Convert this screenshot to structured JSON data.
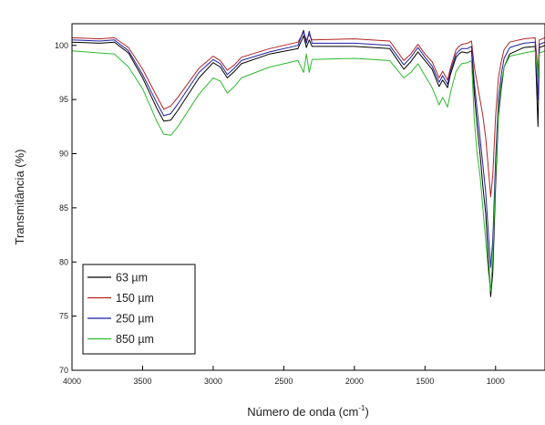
{
  "chart_data": {
    "type": "line",
    "title": "",
    "xlabel": "Número de onda (cm",
    "xlabel_sup": "-1",
    "xlabel_suffix": ")",
    "ylabel": "Transmitância (%)",
    "xlim": [
      4000,
      650
    ],
    "ylim": [
      70,
      102
    ],
    "x_reversed": true,
    "x_ticks": [
      4000,
      3500,
      3000,
      2500,
      2000,
      1500,
      1000
    ],
    "y_ticks": [
      70,
      75,
      80,
      85,
      90,
      95,
      100
    ],
    "grid": false,
    "legend_position": "bottom-left",
    "series": [
      {
        "name": "63 µm",
        "color": "#000000",
        "points": [
          [
            4000,
            100.3
          ],
          [
            3800,
            100.2
          ],
          [
            3700,
            100.3
          ],
          [
            3600,
            99.3
          ],
          [
            3500,
            97.0
          ],
          [
            3400,
            94.2
          ],
          [
            3350,
            93.0
          ],
          [
            3300,
            93.1
          ],
          [
            3250,
            94.0
          ],
          [
            3100,
            97.0
          ],
          [
            3000,
            98.4
          ],
          [
            2950,
            98.0
          ],
          [
            2900,
            97.0
          ],
          [
            2850,
            97.6
          ],
          [
            2800,
            98.3
          ],
          [
            2600,
            99.2
          ],
          [
            2400,
            99.7
          ],
          [
            2360,
            100.9
          ],
          [
            2340,
            99.8
          ],
          [
            2320,
            100.5
          ],
          [
            2300,
            99.9
          ],
          [
            2000,
            99.9
          ],
          [
            1750,
            99.7
          ],
          [
            1650,
            97.8
          ],
          [
            1600,
            98.5
          ],
          [
            1550,
            99.4
          ],
          [
            1500,
            98.6
          ],
          [
            1450,
            97.8
          ],
          [
            1400,
            96.2
          ],
          [
            1375,
            96.8
          ],
          [
            1340,
            96.1
          ],
          [
            1320,
            97.3
          ],
          [
            1280,
            98.9
          ],
          [
            1260,
            99.2
          ],
          [
            1240,
            99.4
          ],
          [
            1200,
            99.3
          ],
          [
            1170,
            99.5
          ],
          [
            1150,
            95.5
          ],
          [
            1130,
            92.5
          ],
          [
            1110,
            90.0
          ],
          [
            1090,
            87.0
          ],
          [
            1070,
            84.5
          ],
          [
            1050,
            80.0
          ],
          [
            1035,
            76.8
          ],
          [
            1020,
            79.0
          ],
          [
            1000,
            87.0
          ],
          [
            980,
            93.5
          ],
          [
            960,
            96.0
          ],
          [
            940,
            98.0
          ],
          [
            900,
            99.2
          ],
          [
            800,
            99.8
          ],
          [
            720,
            99.9
          ],
          [
            700,
            92.5
          ],
          [
            690,
            99.8
          ],
          [
            650,
            100.0
          ]
        ]
      },
      {
        "name": "150 µm",
        "color": "#b22222",
        "points": [
          [
            4000,
            100.7
          ],
          [
            3800,
            100.6
          ],
          [
            3700,
            100.7
          ],
          [
            3600,
            99.8
          ],
          [
            3500,
            97.8
          ],
          [
            3400,
            95.3
          ],
          [
            3350,
            94.1
          ],
          [
            3300,
            94.4
          ],
          [
            3250,
            95.2
          ],
          [
            3100,
            97.9
          ],
          [
            3000,
            99.0
          ],
          [
            2950,
            98.6
          ],
          [
            2900,
            97.7
          ],
          [
            2850,
            98.2
          ],
          [
            2800,
            98.9
          ],
          [
            2600,
            99.7
          ],
          [
            2400,
            100.3
          ],
          [
            2360,
            101.2
          ],
          [
            2340,
            100.5
          ],
          [
            2320,
            101.0
          ],
          [
            2300,
            100.5
          ],
          [
            2000,
            100.6
          ],
          [
            1750,
            100.4
          ],
          [
            1650,
            98.6
          ],
          [
            1600,
            99.2
          ],
          [
            1550,
            100.1
          ],
          [
            1500,
            99.2
          ],
          [
            1450,
            98.5
          ],
          [
            1400,
            97.0
          ],
          [
            1375,
            97.6
          ],
          [
            1340,
            96.8
          ],
          [
            1320,
            97.9
          ],
          [
            1280,
            99.6
          ],
          [
            1260,
            99.9
          ],
          [
            1240,
            100.1
          ],
          [
            1200,
            100.2
          ],
          [
            1170,
            100.4
          ],
          [
            1150,
            98.0
          ],
          [
            1130,
            96.5
          ],
          [
            1110,
            95.0
          ],
          [
            1090,
            93.5
          ],
          [
            1070,
            91.5
          ],
          [
            1050,
            88.5
          ],
          [
            1035,
            86.0
          ],
          [
            1020,
            88.0
          ],
          [
            1000,
            93.5
          ],
          [
            980,
            97.0
          ],
          [
            960,
            98.5
          ],
          [
            940,
            99.6
          ],
          [
            900,
            100.3
          ],
          [
            800,
            100.6
          ],
          [
            720,
            100.7
          ],
          [
            700,
            97.5
          ],
          [
            690,
            100.5
          ],
          [
            650,
            100.7
          ]
        ]
      },
      {
        "name": "250 µm",
        "color": "#1f1fa0",
        "points": [
          [
            4000,
            100.5
          ],
          [
            3800,
            100.4
          ],
          [
            3700,
            100.5
          ],
          [
            3600,
            99.5
          ],
          [
            3500,
            97.3
          ],
          [
            3400,
            94.7
          ],
          [
            3350,
            93.5
          ],
          [
            3300,
            93.7
          ],
          [
            3250,
            94.6
          ],
          [
            3100,
            97.5
          ],
          [
            3000,
            98.7
          ],
          [
            2950,
            98.3
          ],
          [
            2900,
            97.3
          ],
          [
            2850,
            97.9
          ],
          [
            2800,
            98.6
          ],
          [
            2600,
            99.4
          ],
          [
            2400,
            100.0
          ],
          [
            2360,
            101.4
          ],
          [
            2340,
            100.2
          ],
          [
            2320,
            101.3
          ],
          [
            2300,
            100.2
          ],
          [
            2000,
            100.2
          ],
          [
            1750,
            100.0
          ],
          [
            1650,
            98.2
          ],
          [
            1600,
            98.9
          ],
          [
            1550,
            99.8
          ],
          [
            1500,
            98.9
          ],
          [
            1450,
            98.1
          ],
          [
            1400,
            96.6
          ],
          [
            1375,
            97.2
          ],
          [
            1340,
            96.4
          ],
          [
            1320,
            97.6
          ],
          [
            1280,
            99.2
          ],
          [
            1260,
            99.5
          ],
          [
            1240,
            99.7
          ],
          [
            1200,
            99.7
          ],
          [
            1170,
            99.9
          ],
          [
            1150,
            96.5
          ],
          [
            1130,
            94.0
          ],
          [
            1110,
            91.5
          ],
          [
            1090,
            89.0
          ],
          [
            1070,
            86.5
          ],
          [
            1050,
            82.5
          ],
          [
            1035,
            79.5
          ],
          [
            1020,
            82.0
          ],
          [
            1000,
            89.5
          ],
          [
            980,
            95.0
          ],
          [
            960,
            97.3
          ],
          [
            940,
            98.8
          ],
          [
            900,
            99.8
          ],
          [
            800,
            100.2
          ],
          [
            720,
            100.3
          ],
          [
            700,
            95.0
          ],
          [
            690,
            100.1
          ],
          [
            650,
            100.3
          ]
        ]
      },
      {
        "name": "850 µm",
        "color": "#2db82d",
        "points": [
          [
            4000,
            99.5
          ],
          [
            3800,
            99.3
          ],
          [
            3700,
            99.2
          ],
          [
            3600,
            98.0
          ],
          [
            3500,
            96.0
          ],
          [
            3400,
            93.0
          ],
          [
            3350,
            91.8
          ],
          [
            3300,
            91.7
          ],
          [
            3250,
            92.5
          ],
          [
            3100,
            95.5
          ],
          [
            3000,
            97.0
          ],
          [
            2950,
            96.7
          ],
          [
            2900,
            95.6
          ],
          [
            2850,
            96.2
          ],
          [
            2800,
            97.0
          ],
          [
            2600,
            98.0
          ],
          [
            2400,
            98.6
          ],
          [
            2360,
            97.5
          ],
          [
            2340,
            99.2
          ],
          [
            2320,
            97.5
          ],
          [
            2300,
            98.7
          ],
          [
            2000,
            98.8
          ],
          [
            1750,
            98.6
          ],
          [
            1650,
            97.0
          ],
          [
            1600,
            97.5
          ],
          [
            1550,
            98.3
          ],
          [
            1500,
            97.2
          ],
          [
            1450,
            96.1
          ],
          [
            1400,
            94.5
          ],
          [
            1375,
            95.2
          ],
          [
            1340,
            94.3
          ],
          [
            1320,
            95.6
          ],
          [
            1280,
            97.6
          ],
          [
            1260,
            98.0
          ],
          [
            1240,
            98.3
          ],
          [
            1200,
            98.4
          ],
          [
            1170,
            98.6
          ],
          [
            1150,
            93.0
          ],
          [
            1130,
            90.0
          ],
          [
            1110,
            88.0
          ],
          [
            1090,
            85.0
          ],
          [
            1070,
            82.0
          ],
          [
            1050,
            79.0
          ],
          [
            1035,
            77.3
          ],
          [
            1020,
            80.5
          ],
          [
            1000,
            88.0
          ],
          [
            980,
            94.0
          ],
          [
            960,
            96.5
          ],
          [
            940,
            98.0
          ],
          [
            900,
            99.0
          ],
          [
            800,
            99.3
          ],
          [
            720,
            99.5
          ],
          [
            700,
            97.0
          ],
          [
            690,
            99.3
          ],
          [
            650,
            99.5
          ]
        ]
      }
    ]
  }
}
